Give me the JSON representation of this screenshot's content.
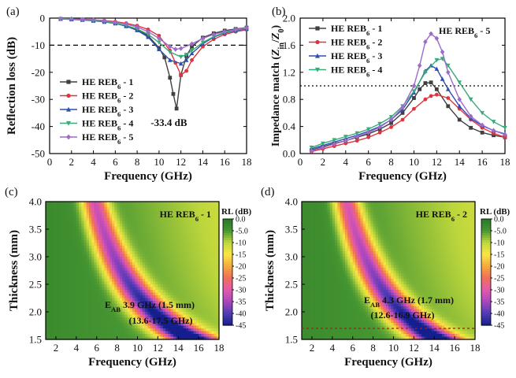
{
  "panels": [
    {
      "id": "a",
      "panel_label": "(a)",
      "type": "line",
      "xlabel": "Frequency (GHz)",
      "ylabel": "Reflection loss (dB)",
      "xlim": [
        0,
        18
      ],
      "ylim": [
        -50,
        0
      ],
      "xticks": [
        0,
        2,
        4,
        6,
        8,
        10,
        12,
        14,
        16,
        18
      ],
      "yticks": [
        0,
        -10,
        -20,
        -30,
        -40,
        -50
      ],
      "reference_line_y": -10,
      "annotation": "-33.4 dB",
      "legend_placement": "left-center",
      "series": [
        {
          "name": "HE REB6 - 1",
          "label": [
            "HE REB",
            "6",
            " - 1"
          ],
          "color": "#404040",
          "marker": "square",
          "x": [
            1,
            2,
            3,
            4,
            5,
            6,
            7,
            8,
            9,
            10,
            10.5,
            11,
            11.3,
            11.6,
            12,
            12.5,
            13,
            14,
            15,
            16,
            17,
            18
          ],
          "y": [
            -0.3,
            -0.4,
            -0.6,
            -0.9,
            -1.3,
            -1.9,
            -2.8,
            -4.2,
            -6.5,
            -11,
            -14.5,
            -22,
            -28,
            -33.4,
            -21,
            -14,
            -10.5,
            -7.2,
            -5.6,
            -4.6,
            -4,
            -3.5
          ]
        },
        {
          "name": "HE REB6 - 2",
          "label": [
            "HE REB",
            "6",
            " - 2"
          ],
          "color": "#e0333e",
          "marker": "circle",
          "x": [
            1,
            2,
            3,
            4,
            5,
            6,
            7,
            8,
            9,
            10,
            11,
            11.5,
            12,
            12.5,
            13,
            14,
            15,
            16,
            17,
            18
          ],
          "y": [
            -0.2,
            -0.3,
            -0.4,
            -0.6,
            -0.9,
            -1.3,
            -1.9,
            -2.8,
            -4.2,
            -6.5,
            -12,
            -16.5,
            -21,
            -19.5,
            -15.5,
            -10.5,
            -7.8,
            -6,
            -5,
            -4.3
          ]
        },
        {
          "name": "HE REB6 - 3",
          "label": [
            "HE REB",
            "6",
            " - 3"
          ],
          "color": "#2f4fb0",
          "marker": "triangle",
          "x": [
            1,
            2,
            3,
            4,
            5,
            6,
            7,
            8,
            9,
            10,
            11,
            12,
            12.5,
            13,
            14,
            15,
            16,
            17,
            18
          ],
          "y": [
            -0.3,
            -0.5,
            -0.7,
            -1,
            -1.4,
            -2,
            -3,
            -4.5,
            -7,
            -11.5,
            -15.5,
            -16.8,
            -15.5,
            -13,
            -9.5,
            -7,
            -5.5,
            -4.6,
            -4
          ]
        },
        {
          "name": "HE REB6 - 4",
          "label": [
            "HE REB",
            "6",
            " - 4"
          ],
          "color": "#3aaa7a",
          "marker": "triangle-down",
          "x": [
            1,
            2,
            3,
            4,
            5,
            6,
            7,
            8,
            9,
            10,
            11,
            12,
            12.5,
            13,
            14,
            15,
            16,
            17,
            18
          ],
          "y": [
            -0.3,
            -0.4,
            -0.6,
            -0.9,
            -1.3,
            -1.9,
            -2.7,
            -4,
            -6,
            -9,
            -12.5,
            -14.3,
            -13.5,
            -12,
            -9,
            -6.8,
            -5.3,
            -4.5,
            -3.8
          ]
        },
        {
          "name": "HE REB6 - 5",
          "label": [
            "HE REB",
            "6",
            " - 5"
          ],
          "color": "#9e6bc9",
          "marker": "diamond",
          "x": [
            1,
            2,
            3,
            4,
            5,
            6,
            7,
            8,
            9,
            10,
            11,
            11.5,
            12,
            13,
            14,
            15,
            16,
            17,
            18
          ],
          "y": [
            -0.2,
            -0.3,
            -0.5,
            -0.7,
            -1,
            -1.5,
            -2.2,
            -3.3,
            -5,
            -7.5,
            -10.5,
            -11.5,
            -11.2,
            -9.5,
            -7.5,
            -6,
            -5,
            -4.2,
            -3.6
          ]
        }
      ]
    },
    {
      "id": "b",
      "panel_label": "(b)",
      "type": "line",
      "xlabel": "Frequency (GHz)",
      "ylabel": "Impedance match (Zin/Z0)",
      "ylabel_parts": [
        "Impedance match (",
        "Z",
        "in",
        "/",
        "Z",
        "0",
        ")"
      ],
      "xlim": [
        0,
        18
      ],
      "ylim": [
        0,
        2.0
      ],
      "xticks": [
        0,
        2,
        4,
        6,
        8,
        10,
        12,
        14,
        16,
        18
      ],
      "yticks": [
        0.0,
        0.4,
        0.8,
        1.2,
        1.6,
        2.0
      ],
      "ytick_labels": [
        "0.0",
        "0.4",
        "0.8",
        "1.2",
        "1.6",
        "2.0"
      ],
      "reference_line_y": 1.0,
      "annotation": [
        "HE REB",
        "6",
        " - 5"
      ],
      "legend_placement": "top-left",
      "series": [
        {
          "name": "HE REB6 - 1",
          "label": [
            "HE REB",
            "6",
            " - 1"
          ],
          "color": "#404040",
          "marker": "square",
          "x": [
            1,
            2,
            3,
            4,
            5,
            6,
            7,
            8,
            9,
            10,
            10.5,
            11,
            11.5,
            12,
            13,
            14,
            15,
            16,
            17,
            18
          ],
          "y": [
            0.05,
            0.1,
            0.15,
            0.19,
            0.24,
            0.29,
            0.36,
            0.45,
            0.6,
            0.82,
            0.95,
            1.04,
            1.05,
            0.95,
            0.7,
            0.5,
            0.38,
            0.31,
            0.27,
            0.24
          ]
        },
        {
          "name": "HE REB6 - 2",
          "label": [
            "HE REB",
            "6",
            " - 2"
          ],
          "color": "#e0333e",
          "marker": "circle",
          "x": [
            1,
            2,
            3,
            4,
            5,
            6,
            7,
            8,
            9,
            10,
            11,
            11.5,
            12,
            13,
            14,
            15,
            16,
            17,
            18
          ],
          "y": [
            0.03,
            0.07,
            0.11,
            0.15,
            0.19,
            0.24,
            0.31,
            0.39,
            0.5,
            0.66,
            0.8,
            0.85,
            0.87,
            0.82,
            0.66,
            0.5,
            0.38,
            0.3,
            0.24
          ]
        },
        {
          "name": "HE REB6 - 3",
          "label": [
            "HE REB",
            "6",
            " - 3"
          ],
          "color": "#2f4fb0",
          "marker": "triangle",
          "x": [
            1,
            2,
            3,
            4,
            5,
            6,
            7,
            8,
            9,
            10,
            11,
            11.5,
            12,
            12.5,
            13,
            14,
            15,
            16,
            17,
            18
          ],
          "y": [
            0.07,
            0.12,
            0.17,
            0.22,
            0.27,
            0.33,
            0.4,
            0.5,
            0.65,
            0.9,
            1.22,
            1.3,
            1.25,
            1.1,
            0.95,
            0.7,
            0.52,
            0.41,
            0.34,
            0.29
          ]
        },
        {
          "name": "HE REB6 - 4",
          "label": [
            "HE REB",
            "6",
            " - 4"
          ],
          "color": "#3aaa7a",
          "marker": "triangle-down",
          "x": [
            1,
            2,
            3,
            4,
            5,
            6,
            7,
            8,
            9,
            10,
            11,
            12,
            12.5,
            13,
            14,
            15,
            16,
            17,
            18
          ],
          "y": [
            0.09,
            0.15,
            0.2,
            0.25,
            0.3,
            0.36,
            0.44,
            0.54,
            0.7,
            0.92,
            1.2,
            1.38,
            1.4,
            1.3,
            1.05,
            0.8,
            0.6,
            0.47,
            0.38
          ]
        },
        {
          "name": "HE REB6 - 5",
          "label": [
            "HE REB",
            "6",
            " - 5"
          ],
          "color": "#9e6bc9",
          "marker": "diamond",
          "x": [
            1,
            2,
            3,
            4,
            5,
            6,
            7,
            8,
            9,
            10,
            10.5,
            11,
            11.5,
            12,
            12.5,
            13,
            14,
            15,
            16,
            17,
            18
          ],
          "y": [
            0.04,
            0.09,
            0.14,
            0.19,
            0.25,
            0.31,
            0.39,
            0.5,
            0.68,
            1.0,
            1.3,
            1.65,
            1.77,
            1.7,
            1.5,
            1.2,
            0.8,
            0.55,
            0.42,
            0.34,
            0.28
          ]
        }
      ]
    },
    {
      "id": "c",
      "panel_label": "(c)",
      "type": "heatmap",
      "xlabel": "Frequency (GHz)",
      "ylabel": "Thickness (mm)",
      "xlim": [
        1,
        18
      ],
      "ylim": [
        1.5,
        4.0
      ],
      "xticks": [
        2,
        4,
        6,
        8,
        10,
        12,
        14,
        16,
        18
      ],
      "yticks": [
        1.5,
        2.0,
        2.5,
        3.0,
        3.5,
        4.0
      ],
      "ytick_labels": [
        "1.5",
        "2.0",
        "2.5",
        "3.0",
        "3.5",
        "4.0"
      ],
      "sample": [
        "HE REB",
        "6",
        " - 1"
      ],
      "ridge_const": 23.2,
      "eab_label": [
        "E",
        "AB",
        " 3.9 GHz (1.5 mm)"
      ],
      "eab_range": "(13.6-17.5 GHz)",
      "dashed_line_thickness": null,
      "colorbar": {
        "title": "RL (dB)",
        "ticks": [
          "0.0",
          "-5.0",
          "-10",
          "-15",
          "-20",
          "-25",
          "-30",
          "-35",
          "-40",
          "-45"
        ],
        "values": [
          0,
          -5,
          -10,
          -15,
          -20,
          -25,
          -30,
          -35,
          -40,
          -45
        ]
      }
    },
    {
      "id": "d",
      "panel_label": "(d)",
      "type": "heatmap",
      "xlabel": "Frequency (GHz)",
      "ylabel": "Thickness (mm)",
      "xlim": [
        1,
        18
      ],
      "ylim": [
        1.5,
        4.0
      ],
      "xticks": [
        2,
        4,
        6,
        8,
        10,
        12,
        14,
        16,
        18
      ],
      "yticks": [
        1.5,
        2.0,
        2.5,
        3.0,
        3.5,
        4.0
      ],
      "ytick_labels": [
        "1.5",
        "2.0",
        "2.5",
        "3.0",
        "3.5",
        "4.0"
      ],
      "sample": [
        "HE REB",
        "6",
        " - 2"
      ],
      "ridge_const": 21.6,
      "eab_label": [
        "E",
        "AB",
        " 4.3 GHz (1.7 mm)"
      ],
      "eab_range": "(12.6-16.9 GHz)",
      "dashed_line_thickness": 1.7,
      "colorbar": {
        "title": "RL (dB)",
        "ticks": [
          "0.0",
          "-5.0",
          "-10",
          "-15",
          "-20",
          "-25",
          "-30",
          "-35",
          "-40",
          "-45"
        ],
        "values": [
          0,
          -5,
          -10,
          -15,
          -20,
          -25,
          -30,
          -35,
          -40,
          -45
        ]
      }
    }
  ]
}
